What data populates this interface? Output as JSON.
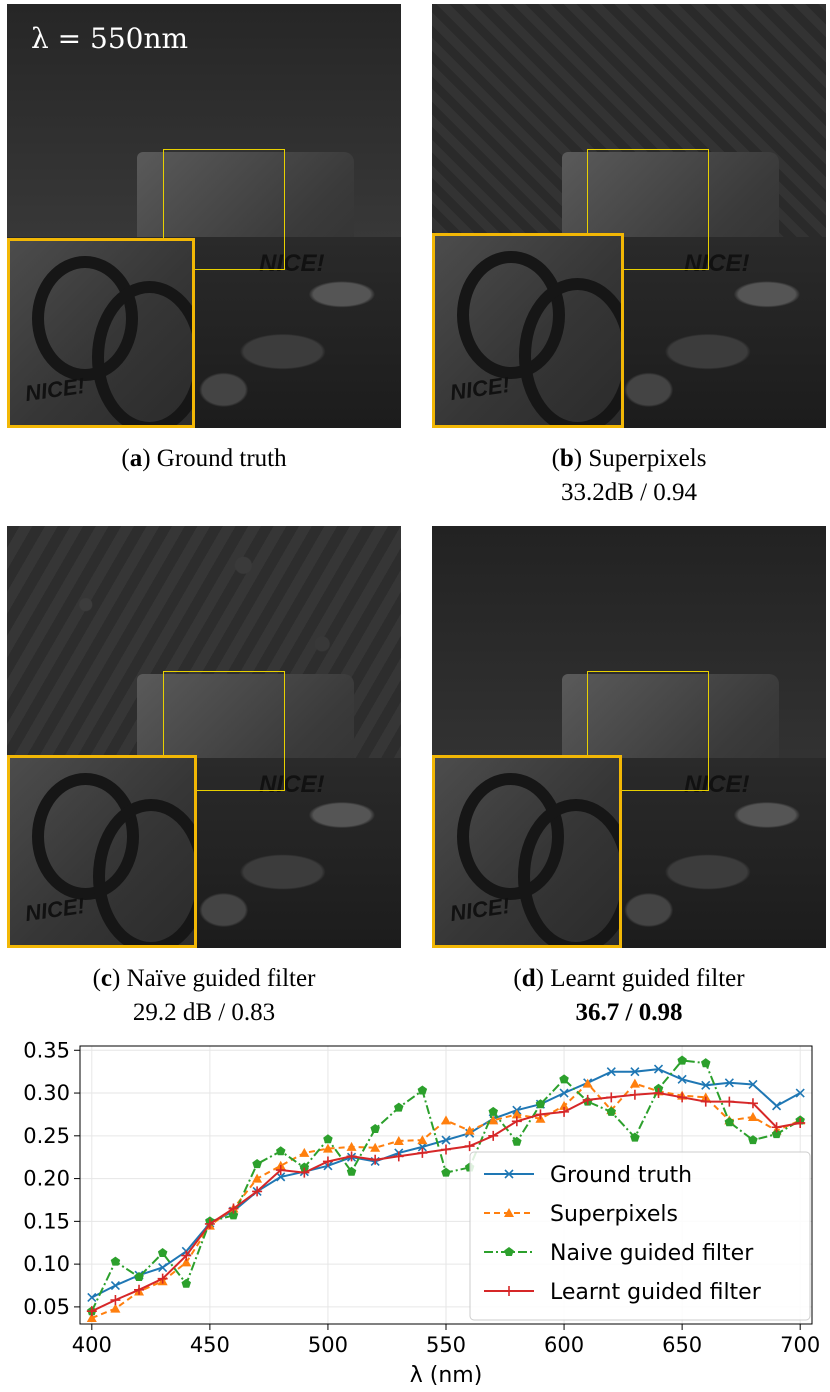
{
  "panels": [
    {
      "id": "a",
      "letter": "a",
      "name": "Ground truth",
      "metrics": "",
      "label": "λ = 550nm",
      "sky": "#2e2e2e",
      "noise": 0
    },
    {
      "id": "b",
      "letter": "b",
      "name": "Superpixels",
      "metrics": "33.2dB / 0.94",
      "label": "",
      "sky": "#2b2b2b",
      "noise": 1
    },
    {
      "id": "c",
      "letter": "c",
      "name": "Naïve guided filter",
      "metrics": "29.2 dB / 0.83",
      "label": "",
      "sky": "#303030",
      "noise": 2
    },
    {
      "id": "d",
      "letter": "d",
      "name": "Learnt guided filter",
      "metrics": "36.7 / 0.98",
      "label": "",
      "sky": "#262626",
      "noise": 0
    }
  ],
  "inset_tag": "NICE!",
  "block_tag": "NICE!",
  "chart_data": {
    "type": "line",
    "xlabel": "λ (nm)",
    "ylabel": "",
    "xlim": [
      395,
      705
    ],
    "ylim": [
      0.03,
      0.355
    ],
    "xticks": [
      400,
      450,
      500,
      550,
      600,
      650,
      700
    ],
    "yticks": [
      0.05,
      0.1,
      0.15,
      0.2,
      0.25,
      0.3,
      0.35
    ],
    "ytick_labels": [
      "0.05",
      "0.10",
      "0.15",
      "0.20",
      "0.25",
      "0.30",
      "0.35"
    ],
    "grid": true,
    "legend_position": "lower-right",
    "x": [
      400,
      410,
      420,
      430,
      440,
      450,
      460,
      470,
      480,
      490,
      500,
      510,
      520,
      530,
      540,
      550,
      560,
      570,
      580,
      590,
      600,
      610,
      620,
      630,
      640,
      650,
      660,
      670,
      680,
      690,
      700
    ],
    "series": [
      {
        "name": "Ground truth",
        "color": "#1f77b4",
        "dash": "",
        "marker": "x",
        "values": [
          0.061,
          0.075,
          0.087,
          0.096,
          0.115,
          0.148,
          0.162,
          0.185,
          0.202,
          0.208,
          0.215,
          0.225,
          0.22,
          0.23,
          0.237,
          0.245,
          0.253,
          0.27,
          0.28,
          0.287,
          0.3,
          0.312,
          0.325,
          0.325,
          0.328,
          0.316,
          0.309,
          0.312,
          0.31,
          0.285,
          0.3
        ]
      },
      {
        "name": "Superpixels",
        "color": "#ff7f0e",
        "dash": "6,4",
        "marker": "triangle",
        "values": [
          0.037,
          0.048,
          0.068,
          0.08,
          0.102,
          0.145,
          0.165,
          0.2,
          0.215,
          0.23,
          0.235,
          0.237,
          0.236,
          0.244,
          0.245,
          0.268,
          0.256,
          0.268,
          0.275,
          0.27,
          0.285,
          0.311,
          0.28,
          0.311,
          0.302,
          0.297,
          0.295,
          0.268,
          0.272,
          0.256,
          0.268
        ]
      },
      {
        "name": "Naive guided filter",
        "color": "#2ca02c",
        "dash": "9,3,2,3",
        "marker": "pentagon",
        "values": [
          0.045,
          0.103,
          0.085,
          0.113,
          0.077,
          0.15,
          0.157,
          0.217,
          0.232,
          0.213,
          0.246,
          0.208,
          0.258,
          0.283,
          0.303,
          0.207,
          0.213,
          0.278,
          0.243,
          0.287,
          0.316,
          0.29,
          0.278,
          0.248,
          0.305,
          0.338,
          0.335,
          0.266,
          0.245,
          0.252,
          0.268
        ]
      },
      {
        "name": "Learnt guided filter",
        "color": "#d62728",
        "dash": "",
        "marker": "plus",
        "values": [
          0.045,
          0.058,
          0.07,
          0.083,
          0.11,
          0.147,
          0.165,
          0.185,
          0.21,
          0.207,
          0.22,
          0.226,
          0.222,
          0.226,
          0.23,
          0.234,
          0.238,
          0.25,
          0.267,
          0.275,
          0.278,
          0.292,
          0.295,
          0.298,
          0.3,
          0.295,
          0.29,
          0.29,
          0.288,
          0.26,
          0.265
        ]
      }
    ]
  }
}
